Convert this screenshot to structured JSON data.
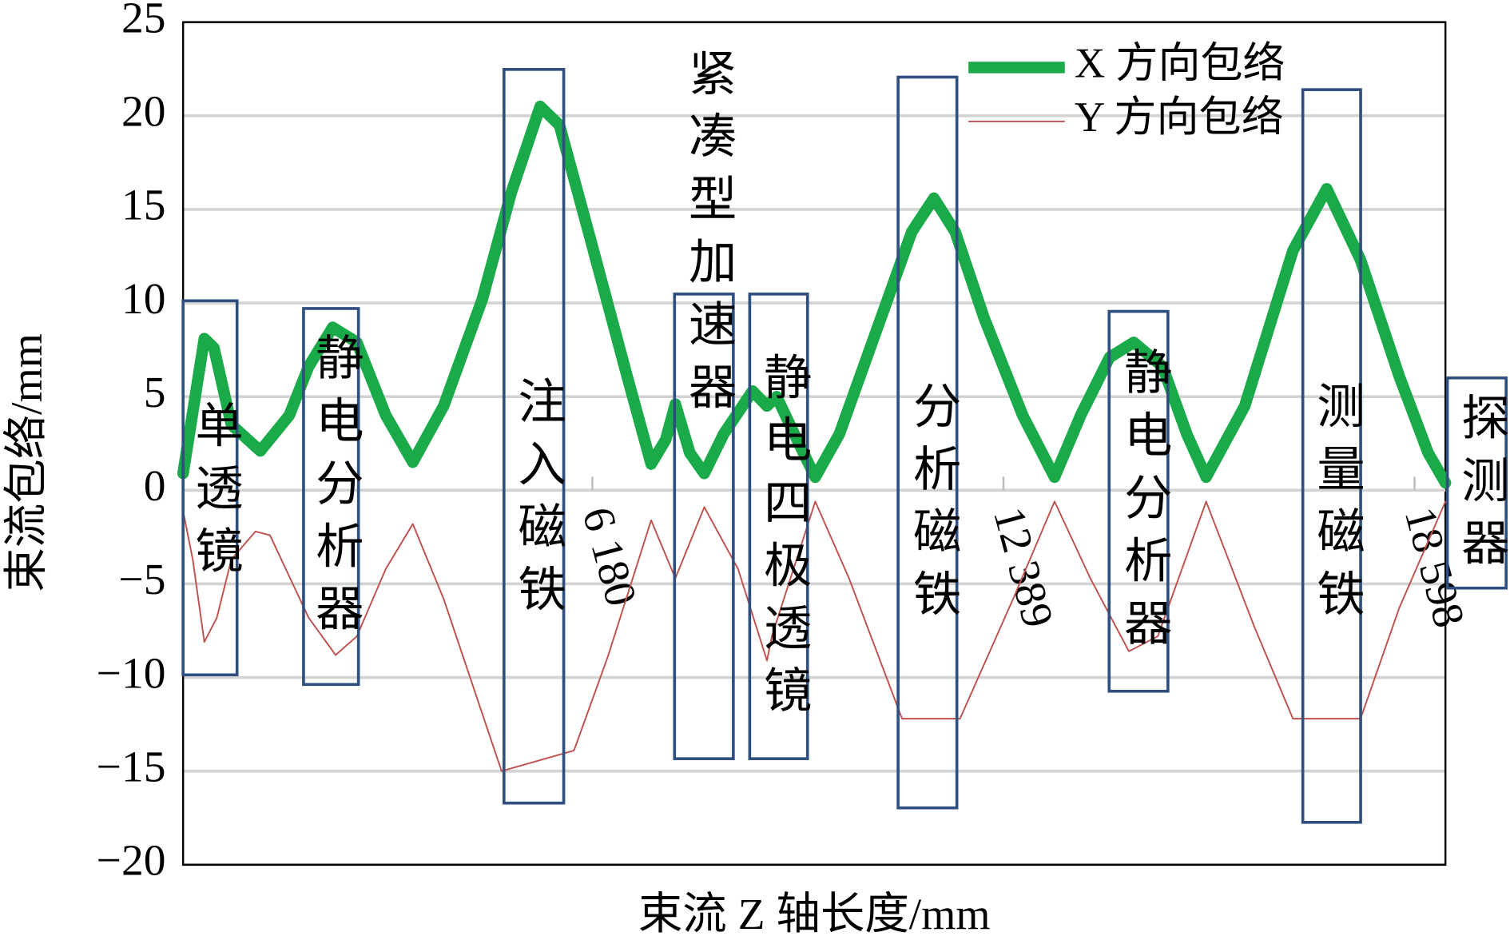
{
  "chart_data": {
    "type": "line",
    "y_label": "束流包络/mm",
    "x_label": "束流 Z 轴长度/mm",
    "xlim": [
      0,
      19064
    ],
    "ylim": [
      -20,
      25
    ],
    "xticks": [
      {
        "value": 6180,
        "label": "6 180"
      },
      {
        "value": 12389,
        "label": "12 389"
      },
      {
        "value": 18598,
        "label": "18 598"
      }
    ],
    "yticks": [
      25,
      20,
      15,
      10,
      5,
      0,
      {
        "value": -5,
        "label": "−5"
      },
      {
        "value": -10,
        "label": "−10"
      },
      {
        "value": -15,
        "label": "−15"
      },
      {
        "value": -20,
        "label": "−20"
      }
    ],
    "grid": true,
    "legend": "upper right",
    "series": [
      {
        "name": "X 方向包络",
        "color": "#1aaa4a",
        "x": [
          0,
          321,
          466,
          729,
          1166,
          1603,
          1895,
          2259,
          2624,
          3061,
          3469,
          3935,
          4518,
          4956,
          5393,
          5684,
          6122,
          6705,
          7069,
          7288,
          7434,
          7652,
          7871,
          8163,
          8600,
          8818,
          8964,
          9299,
          9547,
          9911,
          10640,
          11004,
          11339,
          11660,
          12097,
          12680,
          13161,
          13555,
          13992,
          14356,
          14793,
          15158,
          15450,
          16033,
          16761,
          17272,
          17782,
          18365,
          18802,
          19064
        ],
        "values": [
          0.9,
          8.1,
          7.6,
          3.5,
          2.1,
          4.0,
          6.6,
          8.7,
          7.9,
          4.0,
          1.5,
          4.5,
          10.2,
          15.9,
          20.5,
          19.5,
          13.8,
          6.1,
          1.4,
          2.7,
          4.6,
          2.0,
          0.9,
          3.0,
          5.3,
          4.5,
          5.0,
          2.5,
          0.7,
          3.0,
          10.2,
          13.8,
          15.6,
          13.8,
          9.2,
          4.0,
          0.7,
          4.0,
          7.1,
          7.9,
          6.6,
          3.0,
          0.7,
          4.5,
          12.8,
          16.1,
          12.3,
          6.1,
          2.0,
          0.4
        ]
      },
      {
        "name": "Y 方向包络",
        "color": "#c0504d",
        "x": [
          0,
          146,
          321,
          510,
          729,
          1093,
          1312,
          1895,
          2303,
          2624,
          3061,
          3469,
          3935,
          4810,
          5903,
          6413,
          7069,
          7434,
          7871,
          8381,
          8818,
          8891,
          9547,
          10057,
          10858,
          11733,
          12535,
          13161,
          13701,
          14283,
          14720,
          15450,
          16179,
          16761,
          17782,
          18365,
          19064
        ],
        "values": [
          -1.1,
          -3.7,
          -8.1,
          -6.8,
          -3.7,
          -2.2,
          -2.4,
          -6.8,
          -8.8,
          -7.8,
          -4.2,
          -1.8,
          -5.8,
          -15.0,
          -13.9,
          -8.9,
          -1.6,
          -4.7,
          -0.9,
          -4.2,
          -9.1,
          -7.8,
          -0.6,
          -4.7,
          -12.2,
          -12.2,
          -5.8,
          -0.6,
          -4.7,
          -8.6,
          -7.8,
          -0.6,
          -7.3,
          -12.2,
          -12.2,
          -6.3,
          -0.6
        ]
      }
    ],
    "annotations": [
      {
        "text": "单透镜"
      },
      {
        "text": "静电分析器"
      },
      {
        "text": "注入磁铁"
      },
      {
        "text": "紧凑型加速器"
      },
      {
        "text": "静电四极透镜"
      },
      {
        "text": "分析磁铁"
      },
      {
        "text": "静电分析器"
      },
      {
        "text": "测量磁铁"
      },
      {
        "text": "探测器"
      }
    ]
  }
}
